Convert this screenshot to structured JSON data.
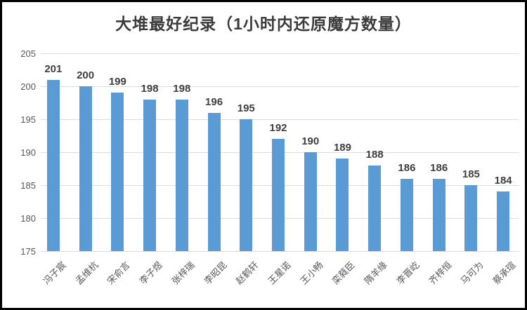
{
  "title": "大堆最好纪录（1小时内还原魔方数量）",
  "chart_data": {
    "type": "bar",
    "title": "大堆最好纪录（1小时内还原魔方数量）",
    "categories": [
      "冯子宸",
      "孟维杭",
      "宋俞言",
      "李子煜",
      "张梓瑞",
      "李昭昆",
      "赵鹤轩",
      "王星诺",
      "王小畅",
      "栾蕤臣",
      "隋羊缘",
      "李晋屹",
      "齐梓恒",
      "马可为",
      "蔡承瑄"
    ],
    "values": [
      201,
      200,
      199,
      198,
      198,
      196,
      195,
      192,
      190,
      189,
      188,
      186,
      186,
      185,
      184
    ],
    "xlabel": "",
    "ylabel": "",
    "ylim": [
      175,
      205
    ],
    "yticks": [
      175,
      180,
      185,
      190,
      195,
      200,
      205
    ],
    "grid": true,
    "legend": "none",
    "bar_color": "#5B9BD5",
    "value_label_color": "#404040",
    "axis_label_color": "#595959",
    "gridline_color": "#dcdcdc",
    "frame_border_color": "#000000"
  }
}
